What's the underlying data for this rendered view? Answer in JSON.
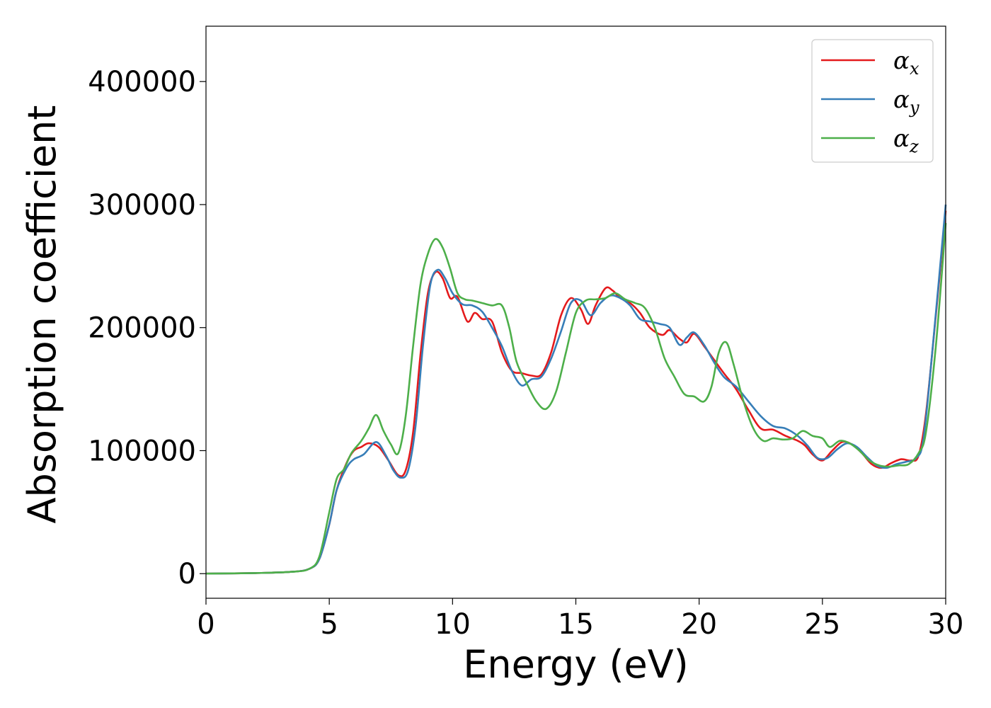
{
  "chart_data": {
    "type": "line",
    "xlabel": "Energy (eV)",
    "ylabel": "Absorption coefficient",
    "xlim": [
      0,
      30
    ],
    "ylim": [
      -20000,
      445000
    ],
    "x_ticks": [
      0,
      5,
      10,
      15,
      20,
      25,
      30
    ],
    "y_ticks": [
      0,
      100000,
      200000,
      300000,
      400000
    ],
    "grid": false,
    "legend_position": "top-right",
    "series": [
      {
        "name": "α_x",
        "label_main": "α",
        "label_sub": "x",
        "color": "#e41a1c",
        "points": [
          [
            0,
            0
          ],
          [
            2,
            500
          ],
          [
            3.5,
            1500
          ],
          [
            4.2,
            4000
          ],
          [
            4.6,
            12000
          ],
          [
            5.0,
            40000
          ],
          [
            5.3,
            68000
          ],
          [
            5.7,
            90000
          ],
          [
            6.0,
            100000
          ],
          [
            6.3,
            103000
          ],
          [
            6.6,
            106000
          ],
          [
            7.0,
            103000
          ],
          [
            7.4,
            92000
          ],
          [
            7.8,
            80000
          ],
          [
            8.1,
            84000
          ],
          [
            8.4,
            115000
          ],
          [
            8.7,
            178000
          ],
          [
            9.0,
            228000
          ],
          [
            9.3,
            245000
          ],
          [
            9.6,
            240000
          ],
          [
            9.9,
            224000
          ],
          [
            10.2,
            225000
          ],
          [
            10.6,
            205000
          ],
          [
            10.9,
            212000
          ],
          [
            11.2,
            207000
          ],
          [
            11.6,
            205000
          ],
          [
            12.0,
            180000
          ],
          [
            12.4,
            165000
          ],
          [
            12.8,
            163000
          ],
          [
            13.2,
            161000
          ],
          [
            13.6,
            162000
          ],
          [
            14.0,
            180000
          ],
          [
            14.4,
            210000
          ],
          [
            14.8,
            224000
          ],
          [
            15.2,
            215000
          ],
          [
            15.5,
            203000
          ],
          [
            15.8,
            218000
          ],
          [
            16.2,
            232000
          ],
          [
            16.5,
            230000
          ],
          [
            16.8,
            224000
          ],
          [
            17.2,
            220000
          ],
          [
            17.6,
            212000
          ],
          [
            18.0,
            200000
          ],
          [
            18.5,
            194000
          ],
          [
            18.8,
            198000
          ],
          [
            19.2,
            191000
          ],
          [
            19.5,
            188000
          ],
          [
            19.8,
            195000
          ],
          [
            20.2,
            185000
          ],
          [
            20.6,
            174000
          ],
          [
            21.0,
            163000
          ],
          [
            21.5,
            150000
          ],
          [
            22.0,
            133000
          ],
          [
            22.5,
            118000
          ],
          [
            23.0,
            117000
          ],
          [
            23.5,
            112000
          ],
          [
            24.0,
            108000
          ],
          [
            24.3,
            104000
          ],
          [
            24.6,
            97000
          ],
          [
            25.0,
            92000
          ],
          [
            25.4,
            100000
          ],
          [
            25.8,
            107000
          ],
          [
            26.2,
            105000
          ],
          [
            26.6,
            98000
          ],
          [
            27.0,
            89000
          ],
          [
            27.4,
            86000
          ],
          [
            27.8,
            90000
          ],
          [
            28.2,
            93000
          ],
          [
            28.6,
            92000
          ],
          [
            28.9,
            96000
          ],
          [
            29.2,
            130000
          ],
          [
            29.6,
            210000
          ],
          [
            30.0,
            295000
          ]
        ]
      },
      {
        "name": "α_y",
        "label_main": "α",
        "label_sub": "y",
        "color": "#377eb8",
        "points": [
          [
            0,
            0
          ],
          [
            2,
            500
          ],
          [
            3.5,
            1500
          ],
          [
            4.2,
            4000
          ],
          [
            4.6,
            12000
          ],
          [
            5.0,
            40000
          ],
          [
            5.3,
            68000
          ],
          [
            5.7,
            86000
          ],
          [
            6.0,
            93000
          ],
          [
            6.4,
            97000
          ],
          [
            6.9,
            107000
          ],
          [
            7.3,
            96000
          ],
          [
            7.6,
            84000
          ],
          [
            7.9,
            78000
          ],
          [
            8.2,
            84000
          ],
          [
            8.5,
            120000
          ],
          [
            8.8,
            185000
          ],
          [
            9.1,
            235000
          ],
          [
            9.4,
            247000
          ],
          [
            9.7,
            240000
          ],
          [
            10.0,
            228000
          ],
          [
            10.4,
            219000
          ],
          [
            10.8,
            218000
          ],
          [
            11.2,
            213000
          ],
          [
            11.6,
            200000
          ],
          [
            12.0,
            185000
          ],
          [
            12.4,
            165000
          ],
          [
            12.8,
            153000
          ],
          [
            13.2,
            158000
          ],
          [
            13.6,
            160000
          ],
          [
            14.0,
            175000
          ],
          [
            14.4,
            197000
          ],
          [
            14.8,
            220000
          ],
          [
            15.2,
            222000
          ],
          [
            15.6,
            210000
          ],
          [
            16.0,
            220000
          ],
          [
            16.4,
            226000
          ],
          [
            16.8,
            224000
          ],
          [
            17.2,
            218000
          ],
          [
            17.6,
            207000
          ],
          [
            18.0,
            205000
          ],
          [
            18.4,
            203000
          ],
          [
            18.8,
            200000
          ],
          [
            19.2,
            186000
          ],
          [
            19.5,
            192000
          ],
          [
            19.8,
            196000
          ],
          [
            20.2,
            186000
          ],
          [
            20.6,
            172000
          ],
          [
            21.0,
            160000
          ],
          [
            21.5,
            152000
          ],
          [
            22.0,
            140000
          ],
          [
            22.5,
            128000
          ],
          [
            23.0,
            120000
          ],
          [
            23.5,
            118000
          ],
          [
            24.0,
            112000
          ],
          [
            24.4,
            104000
          ],
          [
            24.8,
            94000
          ],
          [
            25.2,
            94000
          ],
          [
            25.6,
            101000
          ],
          [
            26.0,
            106000
          ],
          [
            26.4,
            103000
          ],
          [
            26.8,
            95000
          ],
          [
            27.2,
            88000
          ],
          [
            27.6,
            86000
          ],
          [
            28.0,
            89000
          ],
          [
            28.4,
            91000
          ],
          [
            28.8,
            94000
          ],
          [
            29.1,
            110000
          ],
          [
            29.5,
            190000
          ],
          [
            30.0,
            300000
          ]
        ]
      },
      {
        "name": "α_z",
        "label_main": "α",
        "label_sub": "z",
        "color": "#4daf4a",
        "points": [
          [
            0,
            0
          ],
          [
            2,
            500
          ],
          [
            3.5,
            1500
          ],
          [
            4.2,
            4000
          ],
          [
            4.6,
            14000
          ],
          [
            5.0,
            50000
          ],
          [
            5.3,
            77000
          ],
          [
            5.6,
            85000
          ],
          [
            5.9,
            98000
          ],
          [
            6.3,
            108000
          ],
          [
            6.6,
            118000
          ],
          [
            6.9,
            129000
          ],
          [
            7.2,
            116000
          ],
          [
            7.5,
            105000
          ],
          [
            7.8,
            98000
          ],
          [
            8.1,
            128000
          ],
          [
            8.4,
            185000
          ],
          [
            8.7,
            235000
          ],
          [
            9.0,
            260000
          ],
          [
            9.3,
            272000
          ],
          [
            9.6,
            265000
          ],
          [
            9.9,
            248000
          ],
          [
            10.2,
            228000
          ],
          [
            10.5,
            223000
          ],
          [
            10.8,
            222000
          ],
          [
            11.2,
            220000
          ],
          [
            11.6,
            218000
          ],
          [
            12.0,
            218000
          ],
          [
            12.3,
            200000
          ],
          [
            12.6,
            172000
          ],
          [
            13.0,
            155000
          ],
          [
            13.4,
            140000
          ],
          [
            13.8,
            134000
          ],
          [
            14.2,
            148000
          ],
          [
            14.6,
            180000
          ],
          [
            15.0,
            212000
          ],
          [
            15.4,
            222000
          ],
          [
            15.8,
            223000
          ],
          [
            16.2,
            224000
          ],
          [
            16.6,
            228000
          ],
          [
            17.0,
            223000
          ],
          [
            17.4,
            220000
          ],
          [
            17.8,
            216000
          ],
          [
            18.2,
            200000
          ],
          [
            18.6,
            175000
          ],
          [
            19.0,
            160000
          ],
          [
            19.4,
            146000
          ],
          [
            19.8,
            144000
          ],
          [
            20.2,
            140000
          ],
          [
            20.5,
            152000
          ],
          [
            20.8,
            180000
          ],
          [
            21.1,
            188000
          ],
          [
            21.4,
            170000
          ],
          [
            21.8,
            140000
          ],
          [
            22.2,
            118000
          ],
          [
            22.6,
            108000
          ],
          [
            23.0,
            110000
          ],
          [
            23.4,
            109000
          ],
          [
            23.8,
            110000
          ],
          [
            24.2,
            116000
          ],
          [
            24.6,
            112000
          ],
          [
            25.0,
            110000
          ],
          [
            25.3,
            103000
          ],
          [
            25.7,
            108000
          ],
          [
            26.1,
            106000
          ],
          [
            26.5,
            100000
          ],
          [
            26.9,
            92000
          ],
          [
            27.3,
            88000
          ],
          [
            27.7,
            87000
          ],
          [
            28.1,
            88000
          ],
          [
            28.5,
            89000
          ],
          [
            28.9,
            98000
          ],
          [
            29.2,
            115000
          ],
          [
            29.6,
            185000
          ],
          [
            30.0,
            285000
          ]
        ]
      }
    ]
  }
}
